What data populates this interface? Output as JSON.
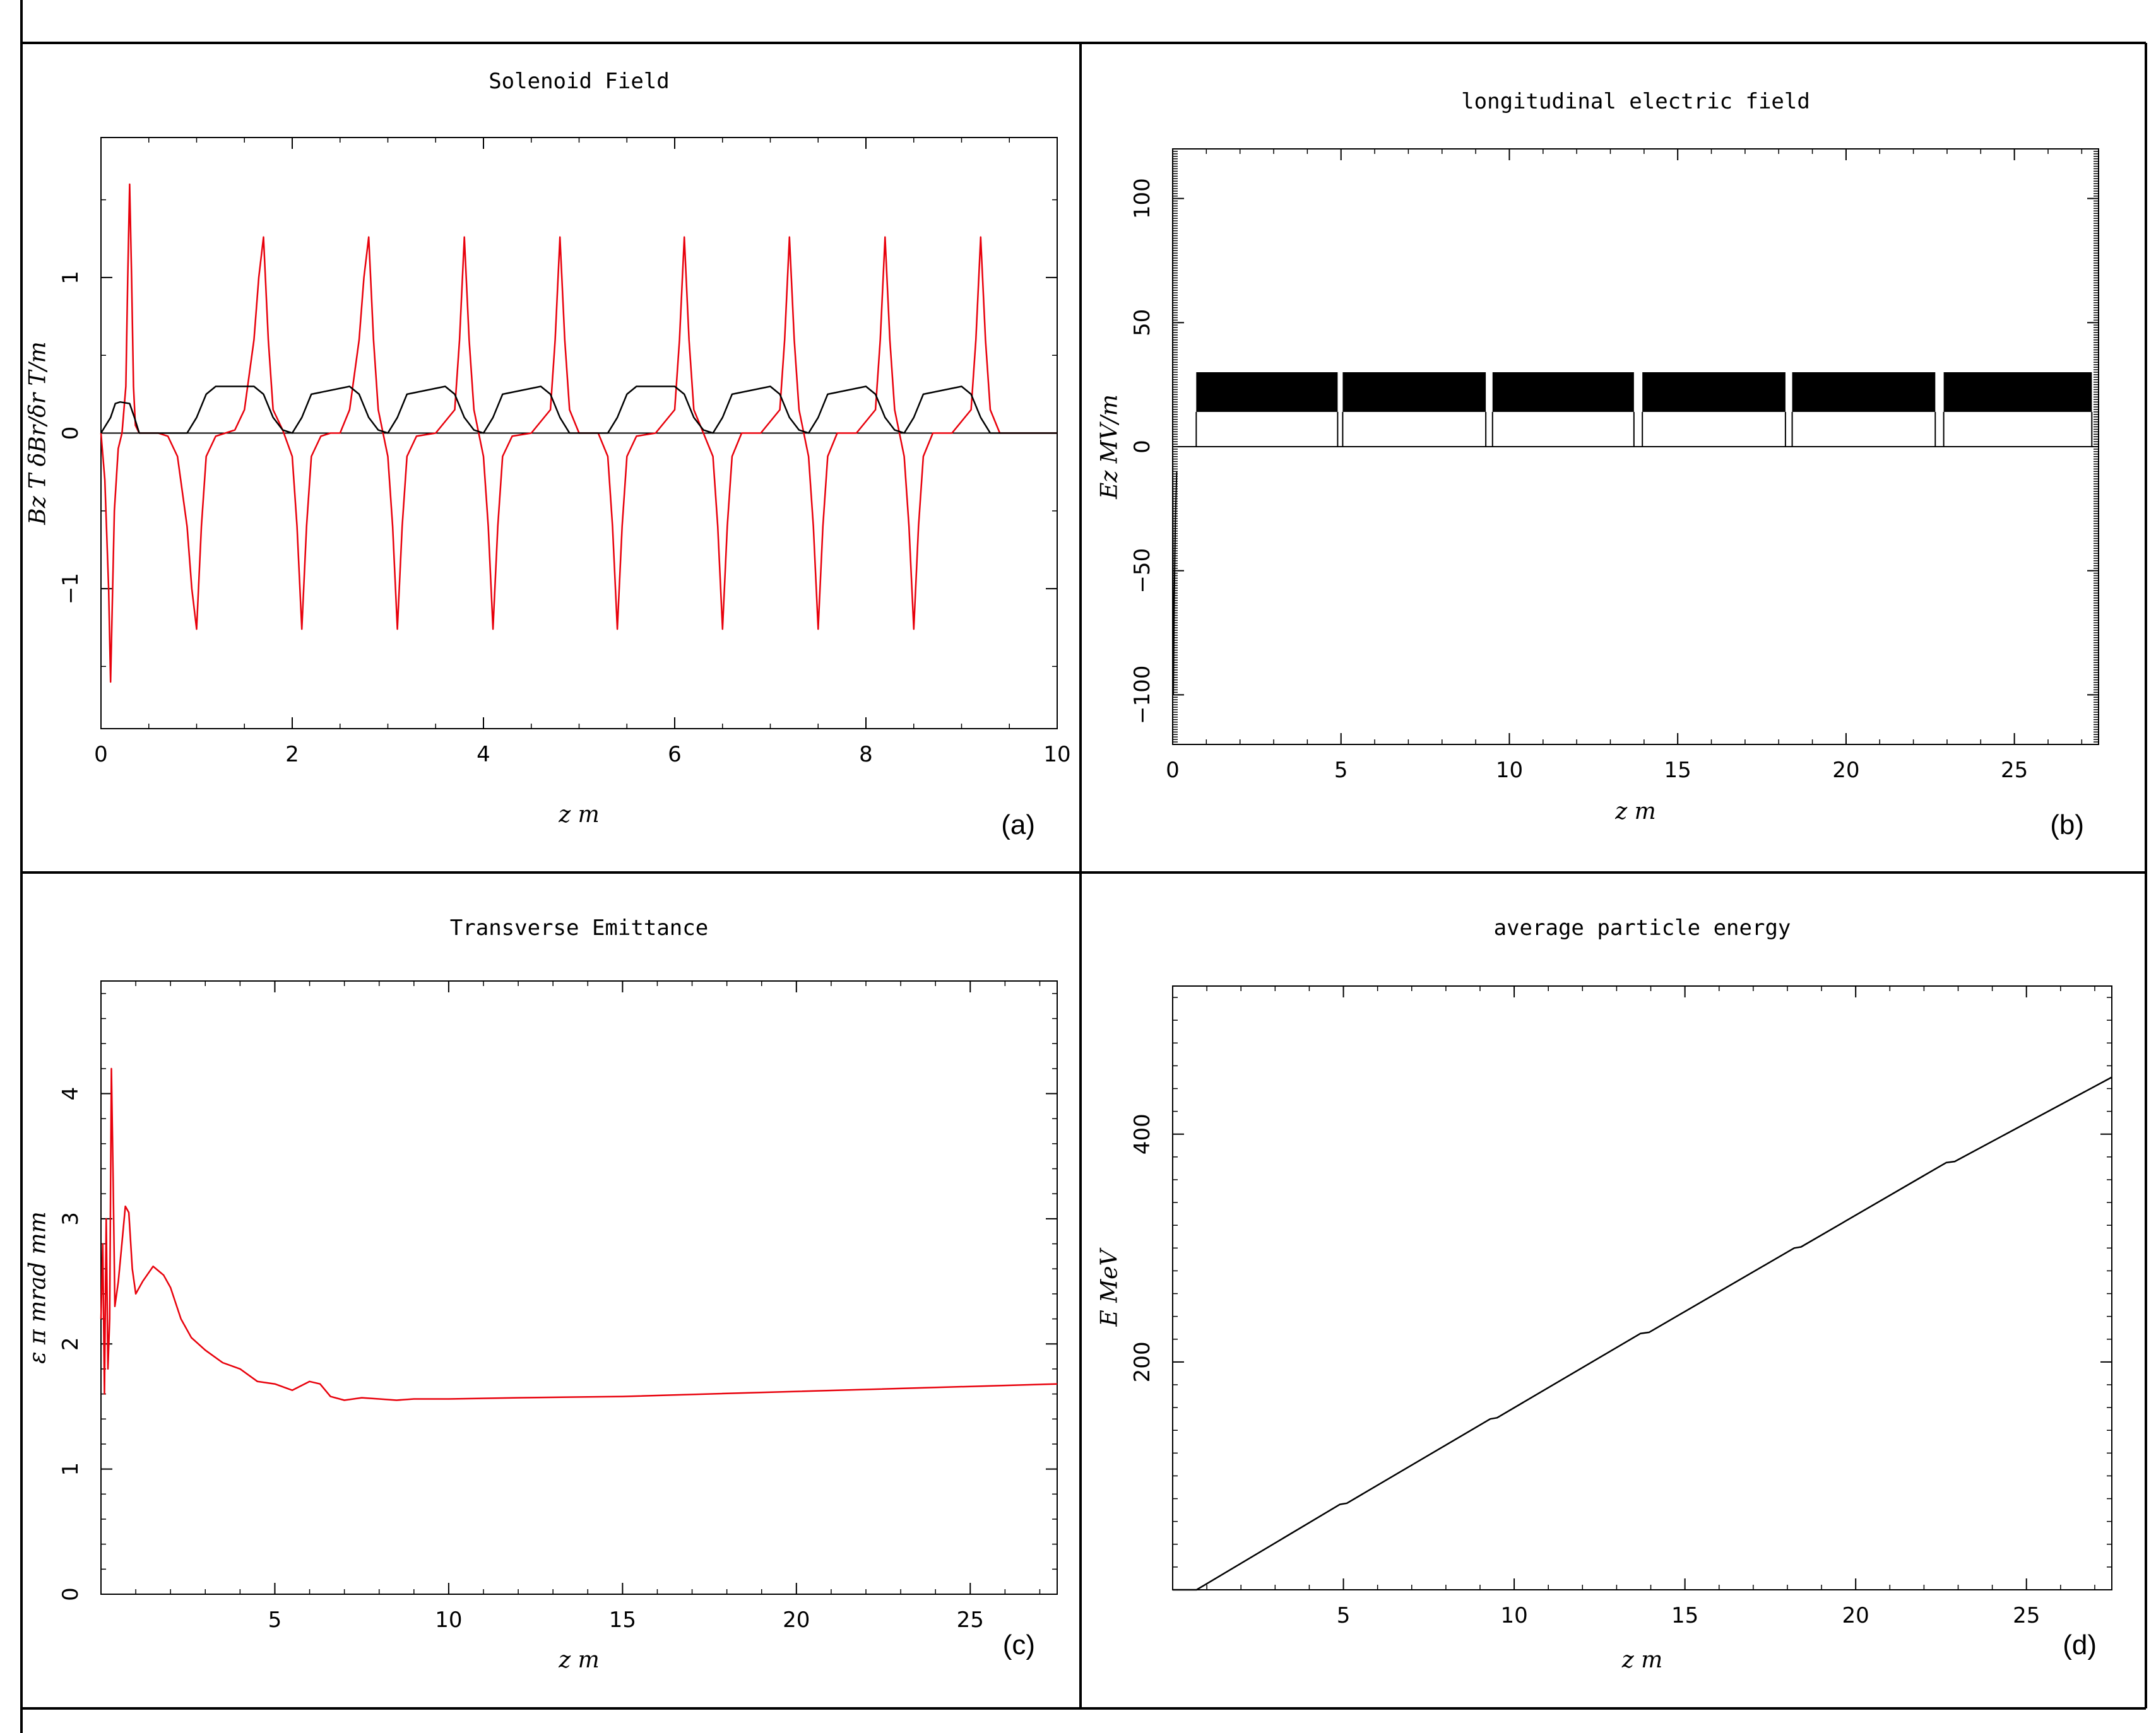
{
  "colors": {
    "red": "#e8000b",
    "black": "#000000"
  },
  "chart_data": [
    {
      "tag": "(a)",
      "type": "line",
      "title": "Solenoid Field",
      "xlabel": "z  m",
      "ylabel": "Bz  T   δBr/δr  T/m",
      "xlim": [
        0,
        10
      ],
      "ylim": [
        -1.9,
        1.9
      ],
      "xticks": [
        "0",
        "2",
        "4",
        "6",
        "8",
        "10"
      ],
      "yticks": [
        "−1",
        "0",
        "1"
      ],
      "series": [
        {
          "color": "red",
          "x": [
            0,
            0.04,
            0.08,
            0.1,
            0.14,
            0.18,
            0.22,
            0.26,
            0.28,
            0.3,
            0.32,
            0.34,
            0.36,
            0.4,
            0.5,
            0.6,
            0.7,
            0.8,
            0.9,
            0.95,
            1.0,
            1.05,
            1.1,
            1.2,
            1.3,
            1.4,
            1.5,
            1.6,
            1.65,
            1.7,
            1.75,
            1.8,
            1.9,
            2.0,
            2.05,
            2.1,
            2.15,
            2.2,
            2.3,
            2.4,
            2.5,
            2.6,
            2.7,
            2.75,
            2.8,
            2.85,
            2.9,
            3.0,
            3.05,
            3.1,
            3.15,
            3.2,
            3.3,
            3.5,
            3.7,
            3.75,
            3.8,
            3.85,
            3.9,
            4.0,
            4.05,
            4.1,
            4.15,
            4.2,
            4.3,
            4.5,
            4.7,
            4.75,
            4.8,
            4.85,
            4.9,
            5.0,
            5.2,
            5.3,
            5.35,
            5.4,
            5.45,
            5.5,
            5.6,
            5.8,
            6.0,
            6.05,
            6.1,
            6.15,
            6.2,
            6.3,
            6.4,
            6.45,
            6.5,
            6.55,
            6.6,
            6.7,
            6.9,
            7.1,
            7.15,
            7.2,
            7.25,
            7.3,
            7.4,
            7.45,
            7.5,
            7.55,
            7.6,
            7.7,
            7.9,
            8.1,
            8.15,
            8.2,
            8.25,
            8.3,
            8.4,
            8.45,
            8.5,
            8.55,
            8.6,
            8.7,
            8.9,
            9.1,
            9.15,
            9.2,
            9.25,
            9.3,
            9.4,
            9.6,
            10.0
          ],
          "y": [
            0,
            -0.3,
            -1.0,
            -1.6,
            -0.5,
            -0.1,
            0.0,
            0.3,
            1.0,
            1.6,
            1.0,
            0.3,
            0.05,
            0,
            0,
            0,
            -0.02,
            -0.15,
            -0.6,
            -1.0,
            -1.26,
            -0.6,
            -0.15,
            -0.02,
            0,
            0.02,
            0.15,
            0.6,
            1.0,
            1.26,
            0.6,
            0.15,
            0.02,
            -0.15,
            -0.6,
            -1.26,
            -0.6,
            -0.15,
            -0.02,
            0,
            0,
            0.15,
            0.6,
            1.0,
            1.26,
            0.6,
            0.15,
            -0.15,
            -0.6,
            -1.26,
            -0.6,
            -0.15,
            -0.02,
            0,
            0.15,
            0.6,
            1.26,
            0.6,
            0.15,
            -0.15,
            -0.6,
            -1.26,
            -0.6,
            -0.15,
            -0.02,
            0,
            0.15,
            0.6,
            1.26,
            0.6,
            0.15,
            0,
            0,
            -0.15,
            -0.6,
            -1.26,
            -0.6,
            -0.15,
            -0.02,
            0,
            0.15,
            0.6,
            1.26,
            0.6,
            0.15,
            0,
            -0.15,
            -0.6,
            -1.26,
            -0.6,
            -0.15,
            0,
            0,
            0.15,
            0.6,
            1.26,
            0.6,
            0.15,
            -0.15,
            -0.6,
            -1.26,
            -0.6,
            -0.15,
            0,
            0,
            0.15,
            0.6,
            1.26,
            0.6,
            0.15,
            -0.15,
            -0.6,
            -1.26,
            -0.6,
            -0.15,
            0,
            0,
            0.15,
            0.6,
            1.26,
            0.6,
            0.15,
            0,
            0,
            0
          ]
        },
        {
          "color": "black",
          "x": [
            0,
            0.1,
            0.15,
            0.2,
            0.3,
            0.35,
            0.4,
            0.9,
            1.0,
            1.1,
            1.2,
            1.6,
            1.7,
            1.8,
            1.9,
            2.0,
            2.1,
            2.2,
            2.6,
            2.7,
            2.8,
            2.9,
            3.0,
            3.1,
            3.2,
            3.6,
            3.7,
            3.8,
            3.9,
            4.0,
            4.1,
            4.2,
            4.6,
            4.7,
            4.8,
            4.9,
            5.3,
            5.4,
            5.5,
            5.6,
            6.0,
            6.1,
            6.2,
            6.3,
            6.4,
            6.5,
            6.6,
            7.0,
            7.1,
            7.2,
            7.3,
            7.4,
            7.5,
            7.6,
            8.0,
            8.1,
            8.2,
            8.3,
            8.4,
            8.5,
            8.6,
            9.0,
            9.1,
            9.2,
            9.3,
            10.0
          ],
          "y": [
            0,
            0.1,
            0.19,
            0.2,
            0.19,
            0.1,
            0,
            0,
            0.1,
            0.25,
            0.3,
            0.3,
            0.25,
            0.1,
            0.02,
            0,
            0.1,
            0.25,
            0.3,
            0.25,
            0.1,
            0.02,
            0,
            0.1,
            0.25,
            0.3,
            0.25,
            0.1,
            0.02,
            0,
            0.1,
            0.25,
            0.3,
            0.25,
            0.1,
            0.0,
            0,
            0.1,
            0.25,
            0.3,
            0.3,
            0.25,
            0.1,
            0.02,
            0,
            0.1,
            0.25,
            0.3,
            0.25,
            0.1,
            0.02,
            0,
            0.1,
            0.25,
            0.3,
            0.25,
            0.1,
            0.02,
            0,
            0.1,
            0.25,
            0.3,
            0.25,
            0.1,
            0,
            0
          ]
        }
      ]
    },
    {
      "tag": "(b)",
      "type": "line",
      "title": "longitudinal electric field",
      "xlabel": "z  m",
      "ylabel": "Ez  MV/m",
      "xlim": [
        0,
        27.5
      ],
      "ylim": [
        -120,
        120
      ],
      "xticks": [
        "0",
        "5",
        "10",
        "15",
        "20",
        "25"
      ],
      "yticks": [
        "−100",
        "−50",
        "0",
        "50",
        "100"
      ],
      "series": [
        {
          "color": "black",
          "blocks": [
            [
              0.7,
              4.9
            ],
            [
              5.05,
              9.3
            ],
            [
              9.5,
              13.7
            ],
            [
              13.95,
              18.2
            ],
            [
              18.4,
              22.65
            ],
            [
              22.9,
              27.3
            ]
          ],
          "upper": 30,
          "lower": 14,
          "spike": {
            "x": [
              0.02,
              0.05,
              0.08,
              0.12
            ],
            "y": [
              -100,
              -60,
              -30,
              -10
            ]
          }
        }
      ]
    },
    {
      "tag": "(c)",
      "type": "line",
      "title": "Transverse Emittance",
      "xlabel": "z  m",
      "ylabel": "ε π  mrad  mm",
      "xlim": [
        0,
        27.5
      ],
      "ylim": [
        0,
        4.9
      ],
      "xticks": [
        "5",
        "10",
        "15",
        "20",
        "25"
      ],
      "yticks": [
        "0",
        "1",
        "2",
        "3",
        "4"
      ],
      "series": [
        {
          "color": "red",
          "x": [
            0,
            0.05,
            0.1,
            0.15,
            0.2,
            0.25,
            0.3,
            0.35,
            0.4,
            0.5,
            0.6,
            0.7,
            0.8,
            0.9,
            1.0,
            1.2,
            1.5,
            1.8,
            2.0,
            2.3,
            2.6,
            3.0,
            3.5,
            4.0,
            4.5,
            5.0,
            5.5,
            6.0,
            6.3,
            6.6,
            7.0,
            7.5,
            8.0,
            8.5,
            9.0,
            10.0,
            12.0,
            15.0,
            20.0,
            25.0,
            27.5
          ],
          "y": [
            2.2,
            2.8,
            1.6,
            3.0,
            1.8,
            2.2,
            4.2,
            3.3,
            2.3,
            2.5,
            2.8,
            3.1,
            3.05,
            2.6,
            2.4,
            2.5,
            2.62,
            2.55,
            2.45,
            2.2,
            2.05,
            1.95,
            1.85,
            1.8,
            1.7,
            1.68,
            1.63,
            1.7,
            1.68,
            1.58,
            1.55,
            1.57,
            1.56,
            1.55,
            1.56,
            1.56,
            1.57,
            1.58,
            1.62,
            1.66,
            1.68
          ]
        }
      ]
    },
    {
      "tag": "(d)",
      "type": "line",
      "title": "average particle energy",
      "xlabel": "z  m",
      "ylabel": "E  MeV",
      "xlim": [
        0,
        27.5
      ],
      "ylim": [
        0,
        530
      ],
      "xticks": [
        "5",
        "10",
        "15",
        "20",
        "25"
      ],
      "yticks": [
        "200",
        "400"
      ],
      "series": [
        {
          "color": "black",
          "x": [
            0,
            0.7,
            4.9,
            5.1,
            9.3,
            9.5,
            13.7,
            13.95,
            18.2,
            18.4,
            22.65,
            22.9,
            27.5
          ],
          "y": [
            0,
            0,
            75,
            76,
            150,
            151,
            225,
            226,
            300,
            301,
            375,
            376,
            450
          ]
        }
      ]
    }
  ]
}
